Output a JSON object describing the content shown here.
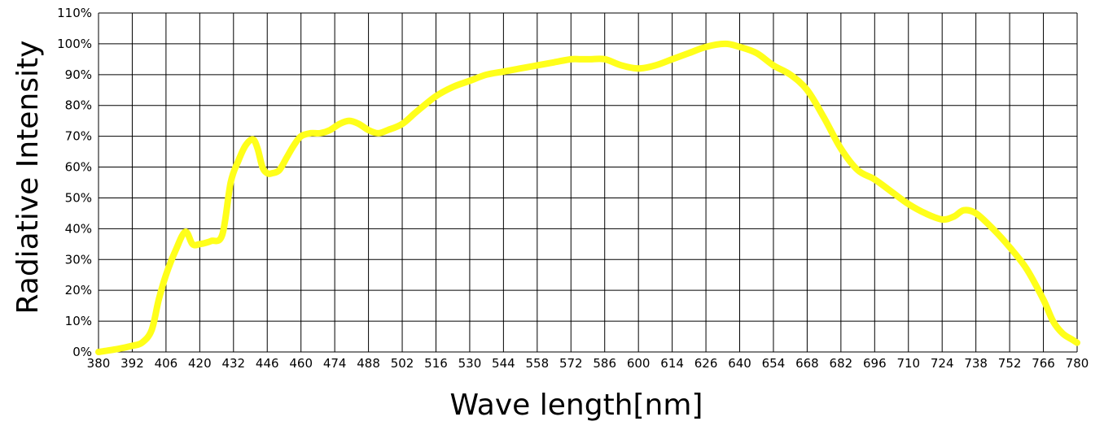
{
  "chart_data": {
    "type": "line",
    "title": "",
    "xlabel": "Wave length[nm]",
    "ylabel": "Radiative Intensity",
    "x_ticks": [
      "380",
      "392",
      "406",
      "420",
      "432",
      "446",
      "460",
      "474",
      "488",
      "502",
      "516",
      "530",
      "544",
      "558",
      "572",
      "586",
      "600",
      "614",
      "626",
      "640",
      "654",
      "668",
      "682",
      "696",
      "710",
      "724",
      "738",
      "752",
      "766",
      "780"
    ],
    "y_ticks": [
      "0%",
      "10%",
      "20%",
      "30%",
      "40%",
      "50%",
      "60%",
      "70%",
      "80%",
      "90%",
      "100%",
      "110%"
    ],
    "xlim": [
      380,
      780
    ],
    "ylim": [
      0,
      110
    ],
    "grid": true,
    "series": [
      {
        "color": "#ffff1a",
        "x": [
          380,
          387,
          392,
          396,
          400,
          403,
          406,
          410,
          414,
          417,
          420,
          424,
          428,
          431,
          434,
          437,
          440,
          442,
          444,
          446,
          448,
          451,
          454,
          457,
          460,
          464,
          468,
          472,
          476,
          480,
          484,
          488,
          492,
          496,
          502,
          508,
          516,
          523,
          530,
          537,
          544,
          551,
          558,
          565,
          572,
          576,
          580,
          586,
          593,
          600,
          607,
          614,
          620,
          626,
          634,
          640,
          647,
          654,
          661,
          668,
          675,
          682,
          689,
          696,
          703,
          710,
          717,
          724,
          729,
          733,
          738,
          745,
          752,
          759,
          766,
          770,
          774,
          778,
          780
        ],
        "values": [
          0,
          1,
          2,
          3,
          7,
          17,
          25,
          33,
          39,
          35,
          35,
          36,
          38,
          55,
          62,
          67,
          69,
          66,
          60,
          58,
          58,
          59,
          63,
          67,
          70,
          71,
          71,
          72,
          74,
          75,
          74,
          72,
          71,
          72,
          74,
          78,
          83,
          86,
          88,
          90,
          91,
          92,
          93,
          94,
          95,
          95,
          95,
          95,
          93,
          92,
          93,
          95,
          97,
          99,
          100,
          99,
          97,
          93,
          90,
          85,
          76,
          66,
          59,
          56,
          52,
          48,
          45,
          43,
          44,
          46,
          45,
          40,
          34,
          27,
          17,
          10,
          6,
          4,
          3
        ]
      }
    ]
  }
}
